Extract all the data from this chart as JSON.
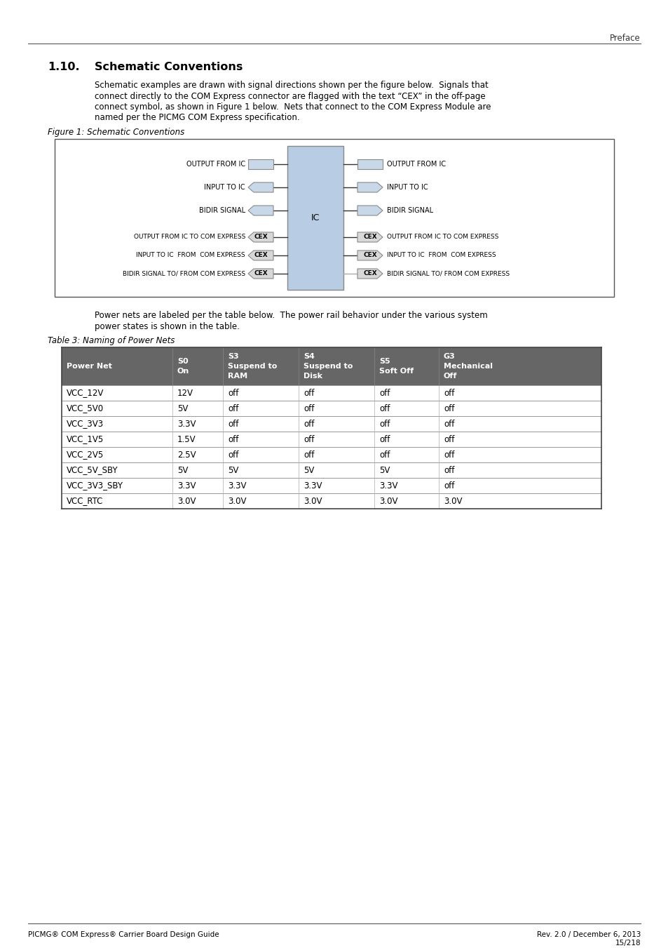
{
  "page_header_text": "Preface",
  "section_number": "1.10.",
  "section_title": "Schematic Conventions",
  "body_text_1_lines": [
    "Schematic examples are drawn with signal directions shown per the figure below.  Signals that",
    "connect directly to the COM Express connector are flagged with the text “CEX” in the off-page",
    "connect symbol, as shown in Figure 1 below.  Nets that connect to the COM Express Module are",
    "named per the PICMG COM Express specification."
  ],
  "figure_caption": "Figure 1: Schematic Conventions",
  "body_text_2_lines": [
    "Power nets are labeled per the table below.  The power rail behavior under the various system",
    "power states is shown in the table."
  ],
  "table_caption": "Table 3: Naming of Power Nets",
  "table_header": [
    "Power Net",
    "S0\nOn",
    "S3\nSuspend to\nRAM",
    "S4\nSuspend to\nDisk",
    "S5\nSoft Off",
    "G3\nMechanical\nOff"
  ],
  "table_rows": [
    [
      "VCC_12V",
      "12V",
      "off",
      "off",
      "off",
      "off"
    ],
    [
      "VCC_5V0",
      "5V",
      "off",
      "off",
      "off",
      "off"
    ],
    [
      "VCC_3V3",
      "3.3V",
      "off",
      "off",
      "off",
      "off"
    ],
    [
      "VCC_1V5",
      "1.5V",
      "off",
      "off",
      "off",
      "off"
    ],
    [
      "VCC_2V5",
      "2.5V",
      "off",
      "off",
      "off",
      "off"
    ],
    [
      "VCC_5V_SBY",
      "5V",
      "5V",
      "5V",
      "5V",
      "off"
    ],
    [
      "VCC_3V3_SBY",
      "3.3V",
      "3.3V",
      "3.3V",
      "3.3V",
      "off"
    ],
    [
      "VCC_RTC",
      "3.0V",
      "3.0V",
      "3.0V",
      "3.0V",
      "3.0V"
    ]
  ],
  "footer_left": "PICMG® COM Express® Carrier Board Design Guide",
  "footer_right_1": "Rev. 2.0 / December 6, 2013",
  "footer_right_2": "15/218",
  "table_header_bg": "#666666",
  "background_color": "#ffffff"
}
